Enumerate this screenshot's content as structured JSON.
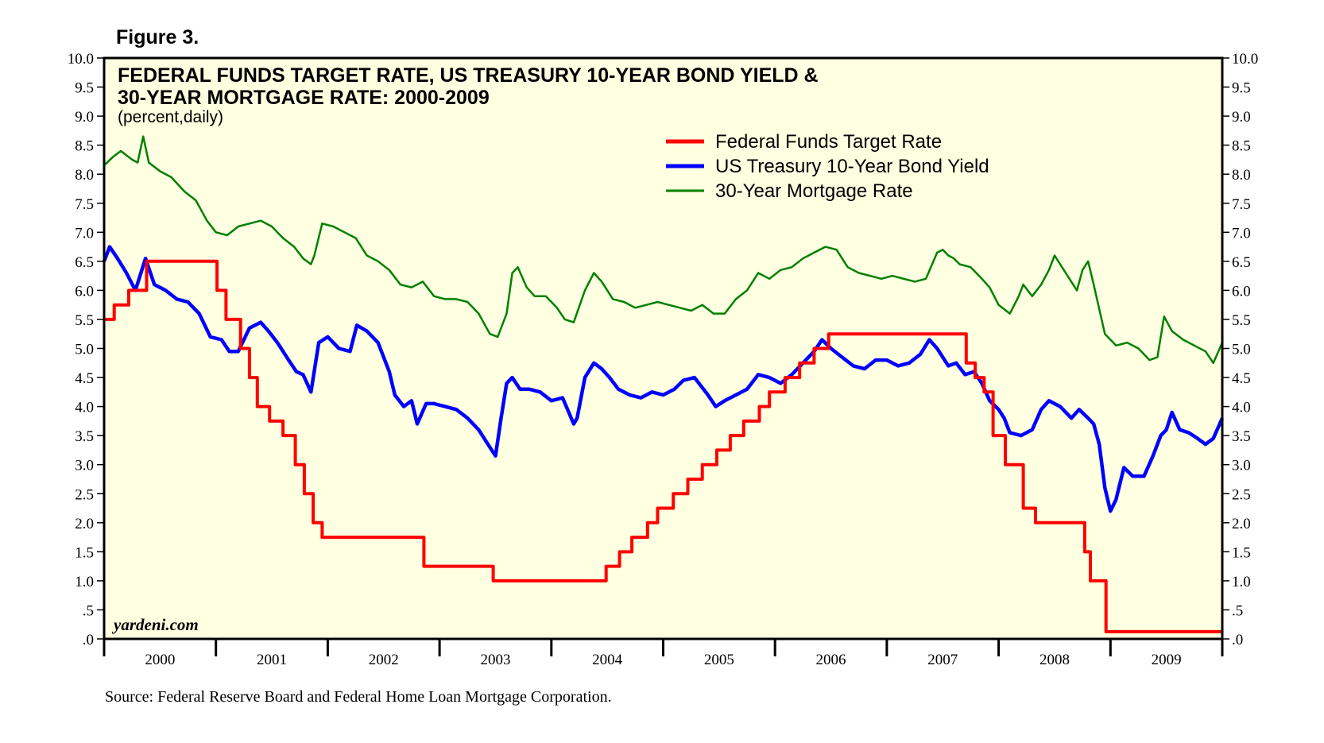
{
  "figure_label": "Figure 3.",
  "source": "Source: Federal Reserve Board and Federal Home Loan Mortgage Corporation.",
  "watermark": "yardeni.com",
  "colors": {
    "plot_bg": "#FFFFE1",
    "fed_funds": "#FF0000",
    "treasury": "#0000FF",
    "mortgage": "#008000",
    "frame": "#000000"
  },
  "chart_data": {
    "type": "line",
    "title_line1": "FEDERAL FUNDS TARGET RATE, US TREASURY 10-YEAR BOND YIELD &",
    "title_line2": "30-YEAR MORTGAGE RATE: 2000-2009",
    "subtitle": "(percent,daily)",
    "xlim": [
      2000.0,
      2010.0
    ],
    "ylim": [
      0,
      10
    ],
    "y_ticks": [
      0,
      0.5,
      1,
      1.5,
      2,
      2.5,
      3,
      3.5,
      4,
      4.5,
      5,
      5.5,
      6,
      6.5,
      7,
      7.5,
      8,
      8.5,
      9,
      9.5,
      10
    ],
    "y_tick_labels": [
      ".0",
      ".5",
      "1.0",
      "1.5",
      "2.0",
      "2.5",
      "3.0",
      "3.5",
      "4.0",
      "4.5",
      "5.0",
      "5.5",
      "6.0",
      "6.5",
      "7.0",
      "7.5",
      "8.0",
      "8.5",
      "9.0",
      "9.5",
      "10.0"
    ],
    "x_categories": [
      "2000",
      "2001",
      "2002",
      "2003",
      "2004",
      "2005",
      "2006",
      "2007",
      "2008",
      "2009"
    ],
    "legend_position": "top-right",
    "series": [
      {
        "name": "Federal Funds Target Rate",
        "style": "step",
        "x": [
          2000.0,
          2000.09,
          2000.22,
          2000.38,
          2001.01,
          2001.09,
          2001.22,
          2001.3,
          2001.37,
          2001.48,
          2001.6,
          2001.71,
          2001.79,
          2001.87,
          2001.95,
          2002.86,
          2003.48,
          2004.49,
          2004.61,
          2004.72,
          2004.86,
          2004.95,
          2005.09,
          2005.22,
          2005.35,
          2005.48,
          2005.6,
          2005.72,
          2005.86,
          2005.95,
          2006.09,
          2006.22,
          2006.35,
          2006.48,
          2007.71,
          2007.79,
          2007.87,
          2007.95,
          2008.06,
          2008.22,
          2008.33,
          2008.77,
          2008.82,
          2008.96,
          2010.0
        ],
        "values": [
          5.5,
          5.75,
          6.0,
          6.5,
          6.0,
          5.5,
          5.0,
          4.5,
          4.0,
          3.75,
          3.5,
          3.0,
          2.5,
          2.0,
          1.75,
          1.25,
          1.0,
          1.25,
          1.5,
          1.75,
          2.0,
          2.25,
          2.5,
          2.75,
          3.0,
          3.25,
          3.5,
          3.75,
          4.0,
          4.25,
          4.5,
          4.75,
          5.0,
          5.25,
          4.75,
          4.5,
          4.25,
          3.5,
          3.0,
          2.25,
          2.0,
          1.5,
          1.0,
          0.125,
          0.125
        ]
      },
      {
        "name": "US Treasury 10-Year Bond Yield",
        "style": "line",
        "x": [
          2000.0,
          2000.05,
          2000.12,
          2000.2,
          2000.28,
          2000.37,
          2000.45,
          2000.55,
          2000.65,
          2000.75,
          2000.85,
          2000.95,
          2001.05,
          2001.12,
          2001.2,
          2001.3,
          2001.4,
          2001.47,
          2001.55,
          2001.65,
          2001.72,
          2001.78,
          2001.85,
          2001.92,
          2002.0,
          2002.1,
          2002.2,
          2002.26,
          2002.35,
          2002.45,
          2002.55,
          2002.6,
          2002.68,
          2002.75,
          2002.8,
          2002.88,
          2002.95,
          2003.05,
          2003.15,
          2003.25,
          2003.35,
          2003.45,
          2003.5,
          2003.55,
          2003.6,
          2003.65,
          2003.72,
          2003.8,
          2003.9,
          2004.0,
          2004.1,
          2004.2,
          2004.23,
          2004.3,
          2004.38,
          2004.45,
          2004.52,
          2004.6,
          2004.7,
          2004.8,
          2004.9,
          2005.0,
          2005.1,
          2005.18,
          2005.28,
          2005.4,
          2005.47,
          2005.55,
          2005.65,
          2005.75,
          2005.85,
          2005.95,
          2006.05,
          2006.15,
          2006.25,
          2006.35,
          2006.42,
          2006.5,
          2006.6,
          2006.7,
          2006.8,
          2006.9,
          2007.0,
          2007.1,
          2007.2,
          2007.3,
          2007.38,
          2007.45,
          2007.55,
          2007.62,
          2007.7,
          2007.78,
          2007.85,
          2007.92,
          2008.0,
          2008.05,
          2008.1,
          2008.2,
          2008.3,
          2008.38,
          2008.45,
          2008.55,
          2008.65,
          2008.72,
          2008.8,
          2008.85,
          2008.9,
          2008.95,
          2009.0,
          2009.05,
          2009.12,
          2009.2,
          2009.3,
          2009.38,
          2009.45,
          2009.5,
          2009.55,
          2009.62,
          2009.7,
          2009.78,
          2009.85,
          2009.92,
          2010.0
        ],
        "values": [
          6.5,
          6.75,
          6.55,
          6.3,
          6.0,
          6.55,
          6.1,
          6.0,
          5.85,
          5.8,
          5.6,
          5.2,
          5.15,
          4.95,
          4.95,
          5.35,
          5.45,
          5.3,
          5.1,
          4.8,
          4.6,
          4.55,
          4.25,
          5.1,
          5.2,
          5.0,
          4.95,
          5.4,
          5.3,
          5.1,
          4.6,
          4.2,
          4.0,
          4.1,
          3.7,
          4.05,
          4.05,
          4.0,
          3.95,
          3.8,
          3.6,
          3.3,
          3.15,
          3.8,
          4.4,
          4.5,
          4.3,
          4.3,
          4.25,
          4.1,
          4.15,
          3.7,
          3.8,
          4.5,
          4.75,
          4.65,
          4.5,
          4.3,
          4.2,
          4.15,
          4.25,
          4.2,
          4.3,
          4.45,
          4.5,
          4.2,
          4.0,
          4.1,
          4.2,
          4.3,
          4.55,
          4.5,
          4.4,
          4.55,
          4.75,
          4.95,
          5.15,
          5.0,
          4.85,
          4.7,
          4.65,
          4.8,
          4.8,
          4.7,
          4.75,
          4.9,
          5.15,
          5.0,
          4.7,
          4.75,
          4.55,
          4.6,
          4.4,
          4.1,
          3.95,
          3.8,
          3.55,
          3.5,
          3.6,
          3.95,
          4.1,
          4.0,
          3.8,
          3.95,
          3.8,
          3.7,
          3.35,
          2.6,
          2.2,
          2.4,
          2.95,
          2.8,
          2.8,
          3.15,
          3.5,
          3.6,
          3.9,
          3.6,
          3.55,
          3.45,
          3.35,
          3.45,
          3.8
        ]
      },
      {
        "name": "30-Year Mortgage Rate",
        "style": "line",
        "x": [
          2000.0,
          2000.08,
          2000.15,
          2000.25,
          2000.3,
          2000.35,
          2000.4,
          2000.5,
          2000.6,
          2000.72,
          2000.82,
          2000.92,
          2001.0,
          2001.1,
          2001.2,
          2001.3,
          2001.4,
          2001.5,
          2001.6,
          2001.7,
          2001.78,
          2001.85,
          2001.88,
          2001.95,
          2002.05,
          2002.15,
          2002.25,
          2002.35,
          2002.45,
          2002.55,
          2002.65,
          2002.75,
          2002.85,
          2002.95,
          2003.05,
          2003.15,
          2003.25,
          2003.35,
          2003.45,
          2003.52,
          2003.6,
          2003.65,
          2003.7,
          2003.78,
          2003.85,
          2003.95,
          2004.05,
          2004.12,
          2004.2,
          2004.3,
          2004.38,
          2004.45,
          2004.55,
          2004.65,
          2004.75,
          2004.85,
          2004.95,
          2005.05,
          2005.15,
          2005.25,
          2005.35,
          2005.45,
          2005.55,
          2005.65,
          2005.75,
          2005.85,
          2005.95,
          2006.05,
          2006.15,
          2006.25,
          2006.35,
          2006.45,
          2006.55,
          2006.65,
          2006.75,
          2006.85,
          2006.95,
          2007.05,
          2007.15,
          2007.25,
          2007.35,
          2007.45,
          2007.5,
          2007.55,
          2007.6,
          2007.65,
          2007.75,
          2007.85,
          2007.92,
          2008.0,
          2008.1,
          2008.18,
          2008.22,
          2008.3,
          2008.38,
          2008.45,
          2008.5,
          2008.6,
          2008.7,
          2008.75,
          2008.8,
          2008.85,
          2008.95,
          2009.05,
          2009.15,
          2009.25,
          2009.35,
          2009.42,
          2009.48,
          2009.55,
          2009.65,
          2009.75,
          2009.85,
          2009.92,
          2010.0
        ],
        "values": [
          8.15,
          8.3,
          8.4,
          8.25,
          8.2,
          8.65,
          8.2,
          8.05,
          7.95,
          7.7,
          7.55,
          7.2,
          7.0,
          6.95,
          7.1,
          7.15,
          7.2,
          7.1,
          6.9,
          6.75,
          6.55,
          6.45,
          6.6,
          7.15,
          7.1,
          7.0,
          6.9,
          6.6,
          6.5,
          6.35,
          6.1,
          6.05,
          6.15,
          5.9,
          5.85,
          5.85,
          5.8,
          5.6,
          5.25,
          5.2,
          5.6,
          6.3,
          6.4,
          6.05,
          5.9,
          5.9,
          5.7,
          5.5,
          5.45,
          6.0,
          6.3,
          6.15,
          5.85,
          5.8,
          5.7,
          5.75,
          5.8,
          5.75,
          5.7,
          5.65,
          5.75,
          5.6,
          5.6,
          5.85,
          6.0,
          6.3,
          6.2,
          6.35,
          6.4,
          6.55,
          6.65,
          6.75,
          6.7,
          6.4,
          6.3,
          6.25,
          6.2,
          6.25,
          6.2,
          6.15,
          6.2,
          6.65,
          6.7,
          6.6,
          6.55,
          6.45,
          6.4,
          6.2,
          6.05,
          5.75,
          5.6,
          5.9,
          6.1,
          5.9,
          6.1,
          6.35,
          6.6,
          6.3,
          6.0,
          6.35,
          6.5,
          6.1,
          5.25,
          5.05,
          5.1,
          5.0,
          4.8,
          4.85,
          5.55,
          5.3,
          5.15,
          5.05,
          4.95,
          4.75,
          5.1
        ]
      }
    ]
  }
}
